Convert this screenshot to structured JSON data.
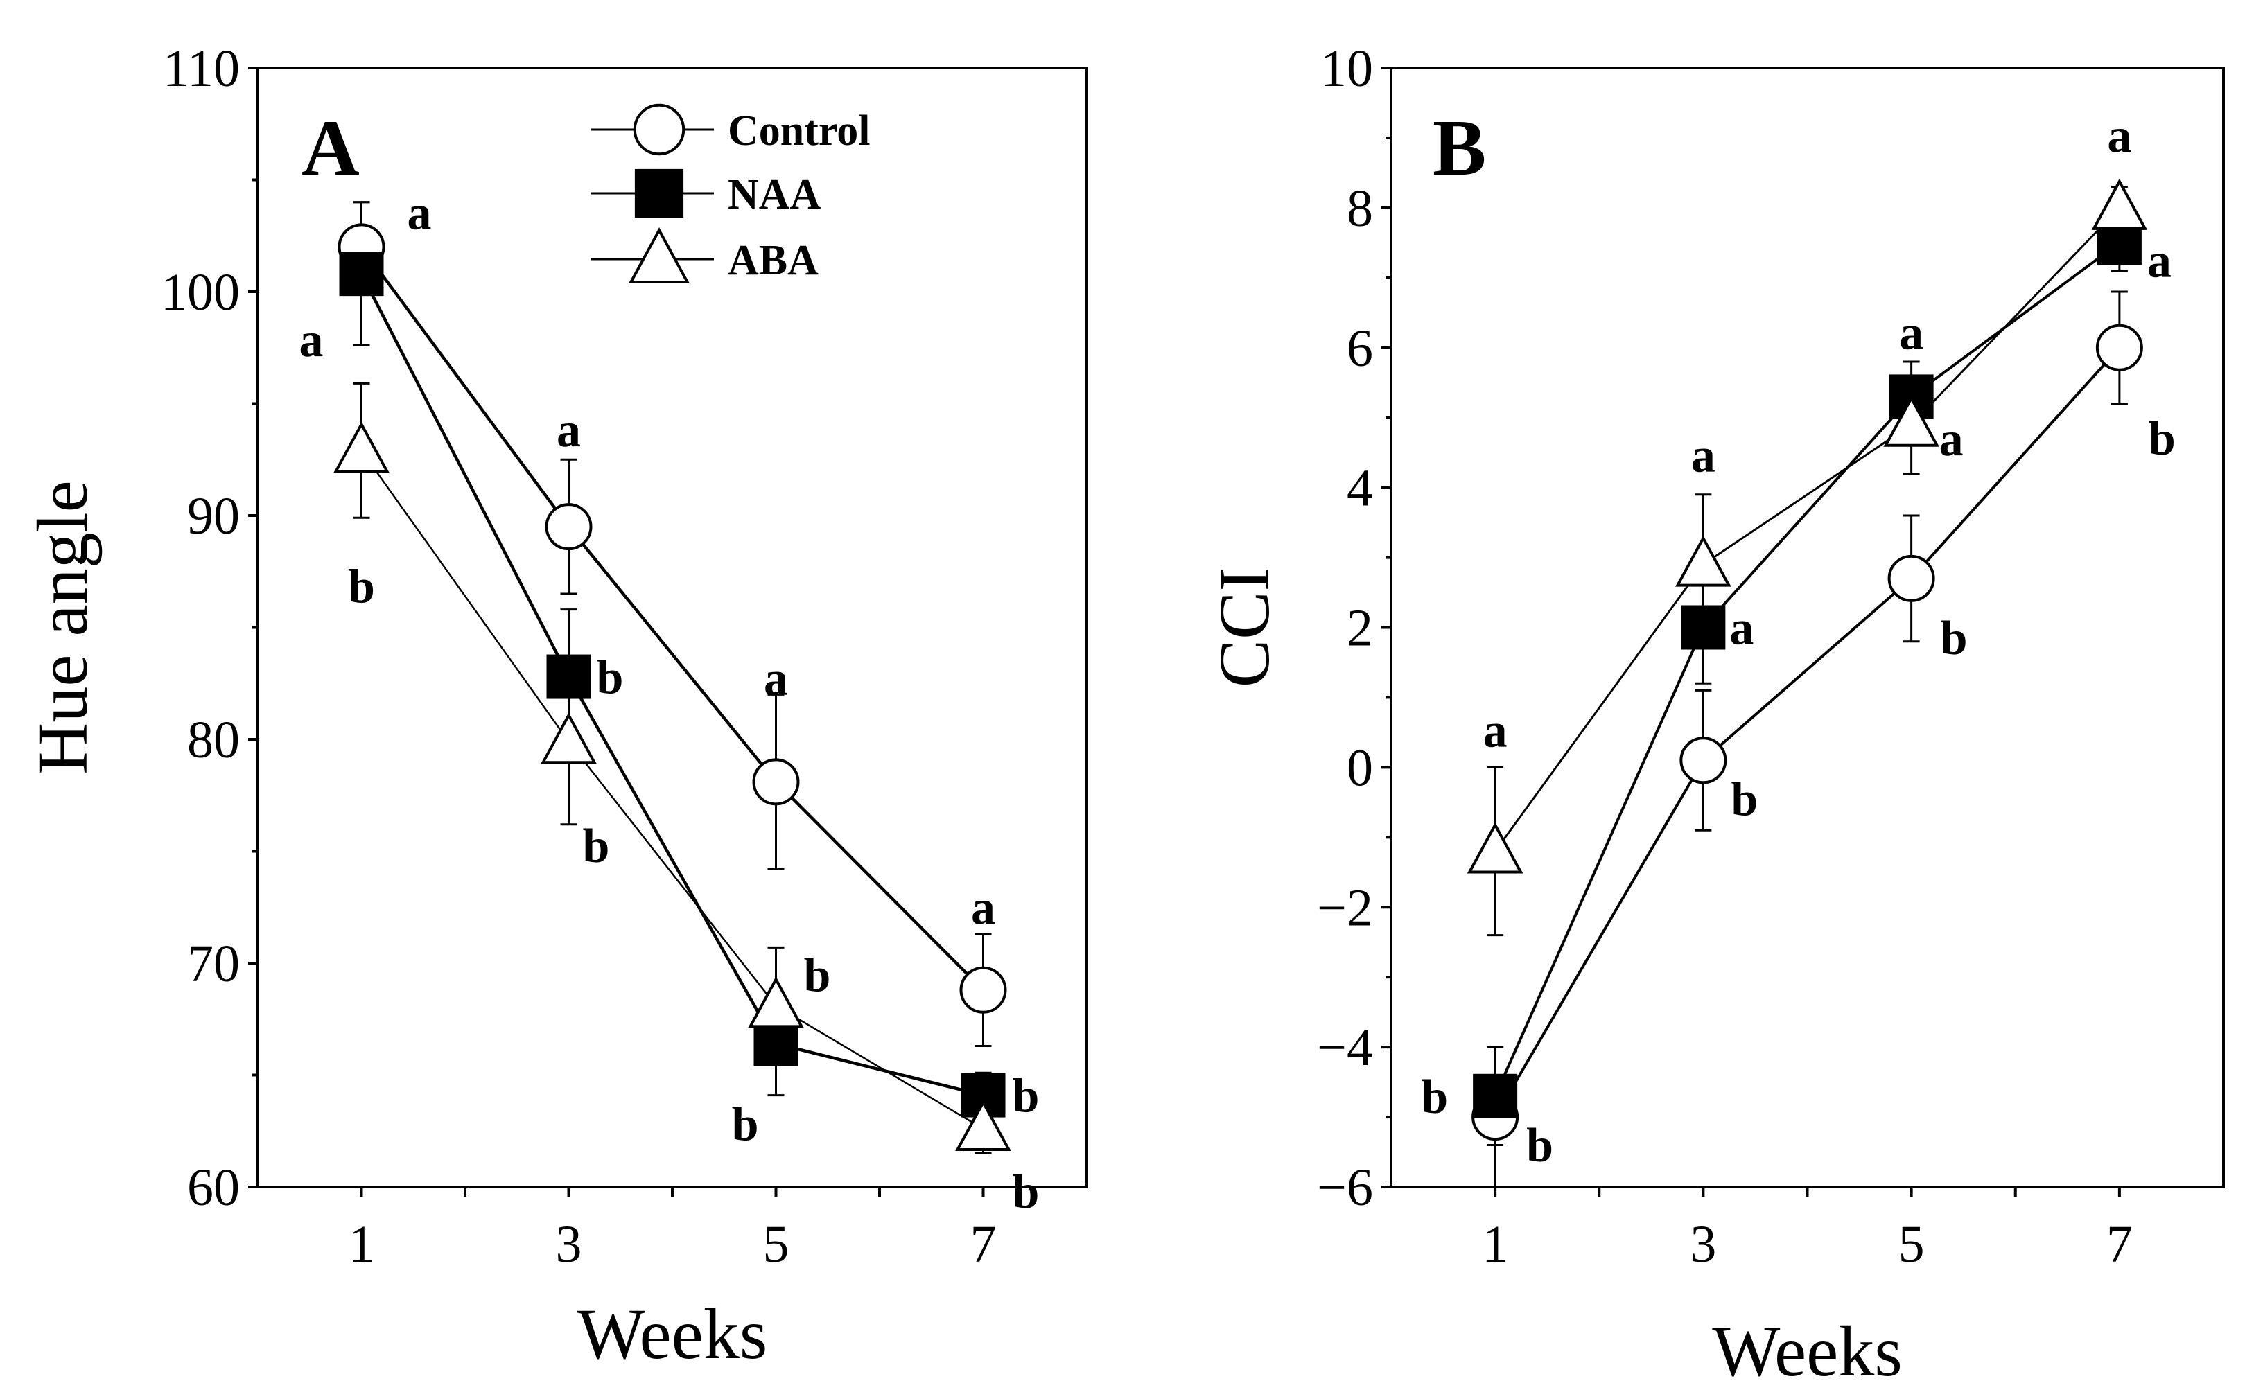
{
  "chart_data": [
    {
      "type": "line",
      "panel": "A",
      "xlabel": "Weeks",
      "ylabel": "Hue angle",
      "x": [
        1,
        3,
        5,
        7
      ],
      "x_ticks": [
        1,
        3,
        5,
        7
      ],
      "x_tick_labels": [
        "1",
        "3",
        "5",
        "7"
      ],
      "ylim": [
        60,
        110
      ],
      "y_ticks": [
        60,
        70,
        80,
        90,
        100,
        110
      ],
      "y_tick_labels": [
        "60",
        "70",
        "80",
        "90",
        "100",
        "110"
      ],
      "legend": [
        "Control",
        "NAA",
        "ABA"
      ],
      "legend_position": "top-center",
      "series": [
        {
          "name": "Control",
          "marker": "circle-open",
          "values": [
            102,
            89.5,
            78.1,
            68.8
          ],
          "errors": [
            2,
            3,
            3.9,
            2.5
          ],
          "letters": [
            "a",
            "a",
            "a",
            "a"
          ]
        },
        {
          "name": "NAA",
          "marker": "square-filled",
          "values": [
            100.8,
            82.8,
            66.4,
            64.1
          ],
          "errors": [
            3.2,
            3,
            2.3,
            1
          ],
          "letters": [
            "a",
            "b",
            "b",
            "b"
          ]
        },
        {
          "name": "ABA",
          "marker": "triangle-open",
          "values": [
            92.9,
            79.9,
            68.1,
            62.6
          ],
          "errors": [
            3,
            3.7,
            2.6,
            1.1
          ],
          "letters": [
            "b",
            "b",
            "b",
            "b"
          ]
        }
      ]
    },
    {
      "type": "line",
      "panel": "B",
      "xlabel": "Weeks",
      "ylabel": "CCI",
      "x": [
        1,
        3,
        5,
        7
      ],
      "x_ticks": [
        1,
        3,
        5,
        7
      ],
      "x_tick_labels": [
        "1",
        "3",
        "5",
        "7"
      ],
      "ylim": [
        -6,
        10
      ],
      "y_ticks": [
        -6,
        -4,
        -2,
        0,
        2,
        4,
        6,
        8,
        10
      ],
      "y_tick_labels": [
        "−6",
        "−4",
        "−2",
        "0",
        "2",
        "4",
        "6",
        "8",
        "10"
      ],
      "series": [
        {
          "name": "Control",
          "marker": "circle-open",
          "values": [
            -5,
            0.1,
            2.7,
            6
          ],
          "errors": [
            1,
            1,
            0.9,
            0.8
          ],
          "letters": [
            "b",
            "b",
            "b",
            "b"
          ]
        },
        {
          "name": "NAA",
          "marker": "square-filled",
          "values": [
            -4.7,
            2,
            5.3,
            7.5
          ],
          "errors": [
            0.7,
            0.8,
            0.5,
            0.4
          ],
          "letters": [
            "b",
            "a",
            "a",
            "a"
          ]
        },
        {
          "name": "ABA",
          "marker": "triangle-open",
          "values": [
            -1.2,
            2.9,
            4.9,
            8
          ],
          "errors": [
            1.2,
            1,
            0.7,
            0.3
          ],
          "letters": [
            "a",
            "a",
            "a",
            "a"
          ]
        }
      ]
    }
  ]
}
